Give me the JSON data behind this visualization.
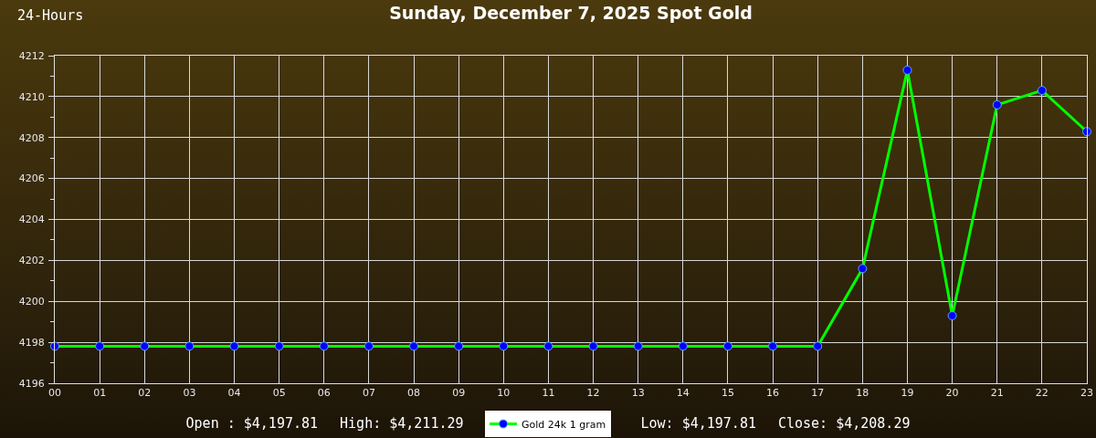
{
  "chart_data": {
    "type": "line",
    "title": "Sunday, December 7, 2025 Spot Gold",
    "annotations": [
      "24-Hours",
      "Open : $4,197.81",
      "High: $4,211.29",
      "Low: $4,197.81",
      "Close: $4,208.29"
    ],
    "x": [
      0,
      1,
      2,
      3,
      4,
      5,
      6,
      7,
      8,
      9,
      10,
      11,
      12,
      13,
      14,
      15,
      16,
      17,
      18,
      19,
      20,
      21,
      22,
      23
    ],
    "xlim": [
      0,
      23
    ],
    "xticks": [
      {
        "value": 0,
        "label": "00"
      },
      {
        "value": 1,
        "label": "01"
      },
      {
        "value": 2,
        "label": "02"
      },
      {
        "value": 3,
        "label": "03"
      },
      {
        "value": 4,
        "label": "04"
      },
      {
        "value": 5,
        "label": "05"
      },
      {
        "value": 6,
        "label": "06"
      },
      {
        "value": 7,
        "label": "07"
      },
      {
        "value": 8,
        "label": "08"
      },
      {
        "value": 9,
        "label": "09"
      },
      {
        "value": 10,
        "label": "10"
      },
      {
        "value": 11,
        "label": "11"
      },
      {
        "value": 12,
        "label": "12"
      },
      {
        "value": 13,
        "label": "13"
      },
      {
        "value": 14,
        "label": "14"
      },
      {
        "value": 15,
        "label": "15"
      },
      {
        "value": 16,
        "label": "16"
      },
      {
        "value": 17,
        "label": "17"
      },
      {
        "value": 18,
        "label": "18"
      },
      {
        "value": 19,
        "label": "19"
      },
      {
        "value": 20,
        "label": "20"
      },
      {
        "value": 21,
        "label": "21"
      },
      {
        "value": 22,
        "label": "22"
      },
      {
        "value": 23,
        "label": "23"
      }
    ],
    "ylim": [
      4196,
      4212
    ],
    "yticks": [
      4196,
      {
        "value": 4197,
        "label": null
      },
      4198,
      {
        "value": 4199,
        "label": null
      },
      4200,
      {
        "value": 4201,
        "label": null
      },
      4202,
      {
        "value": 4203,
        "label": null
      },
      4204,
      {
        "value": 4205,
        "label": null
      },
      4206,
      {
        "value": 4207,
        "label": null
      },
      4208,
      {
        "value": 4209,
        "label": null
      },
      4210,
      {
        "value": 4211,
        "label": null
      },
      4212
    ],
    "series": [
      {
        "name": "Gold 24k 1 gram",
        "color": "#00ff00",
        "values": [
          4197.81,
          4197.81,
          4197.81,
          4197.81,
          4197.81,
          4197.81,
          4197.81,
          4197.81,
          4197.81,
          4197.81,
          4197.81,
          4197.81,
          4197.81,
          4197.81,
          4197.81,
          4197.81,
          4197.81,
          4197.81,
          4201.6,
          4211.29,
          4199.3,
          4209.6,
          4210.3,
          4208.29
        ]
      }
    ],
    "grid": true,
    "legend": "bottom",
    "marker": "circle",
    "line_style": "solid"
  }
}
